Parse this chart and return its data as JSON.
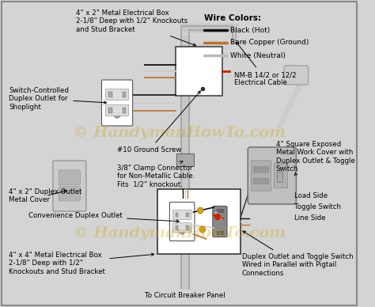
{
  "bg_color": "#d4d4d4",
  "wire_colors_title": "Wire Colors:",
  "wire_legend": [
    {
      "label": "Black (Hot)",
      "color": "#111111"
    },
    {
      "label": "Bare Copper (Ground)",
      "color": "#b87333"
    },
    {
      "label": "White (Neutral)",
      "color": "#bbbbbb"
    }
  ],
  "watermark1": "© HandymanHowTo.com",
  "watermark2": "© HandymanHowTo.com",
  "black": "#111111",
  "copper": "#b87333",
  "white_wire": "#cccccc",
  "red_wire": "#cc2200"
}
